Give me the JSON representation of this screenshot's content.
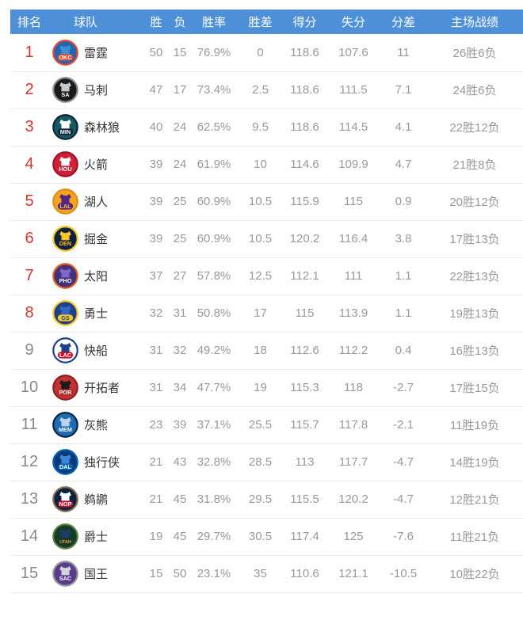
{
  "colors": {
    "header_bg": "#4e90d8",
    "header_text": "#ffffff",
    "rank_playoff": "#d5342e",
    "rank_normal": "#888888",
    "team_text": "#333333",
    "stat_text": "#999999",
    "divider": "#e9e9e9"
  },
  "table": {
    "columns": [
      "排名",
      "球队",
      "胜",
      "负",
      "胜率",
      "胜差",
      "得分",
      "失分",
      "分差",
      "主场战绩"
    ],
    "rows": [
      {
        "rank": "1",
        "playoff": true,
        "team": "雷霆",
        "logo": {
          "abbr": "OKC",
          "bg": "#2166b1",
          "ring": "#e8472b",
          "jersey": "#3f8fd2",
          "band": "#e8472b",
          "text": "#ffffff"
        },
        "wins": "50",
        "losses": "15",
        "pct": "76.9%",
        "gb": "0",
        "pf": "118.6",
        "pa": "107.6",
        "diff": "11",
        "home": "26胜6负"
      },
      {
        "rank": "2",
        "playoff": true,
        "team": "马刺",
        "logo": {
          "abbr": "SA",
          "bg": "#1b1b1b",
          "ring": "#8d9093",
          "jersey": "#c4c9cc",
          "band": "#1b1b1b",
          "text": "#ffffff"
        },
        "wins": "47",
        "losses": "17",
        "pct": "73.4%",
        "gb": "2.5",
        "pf": "118.6",
        "pa": "111.5",
        "diff": "7.1",
        "home": "24胜6负"
      },
      {
        "rank": "3",
        "playoff": true,
        "team": "森林狼",
        "logo": {
          "abbr": "MIN",
          "bg": "#165a60",
          "ring": "#0c2340",
          "jersey": "#ffffff",
          "band": "#0c2340",
          "text": "#ffffff"
        },
        "wins": "40",
        "losses": "24",
        "pct": "62.5%",
        "gb": "9.5",
        "pf": "118.6",
        "pa": "114.5",
        "diff": "4.1",
        "home": "22胜12负"
      },
      {
        "rank": "4",
        "playoff": true,
        "team": "火箭",
        "logo": {
          "abbr": "HOU",
          "bg": "#cf2038",
          "ring": "#9c1527",
          "jersey": "#ffffff",
          "band": "#cf2038",
          "text": "#ffffff"
        },
        "wins": "39",
        "losses": "24",
        "pct": "61.9%",
        "gb": "10",
        "pf": "114.6",
        "pa": "109.9",
        "diff": "4.7",
        "home": "21胜8负"
      },
      {
        "rank": "5",
        "playoff": true,
        "team": "湖人",
        "logo": {
          "abbr": "LAL",
          "bg": "#f5a41e",
          "ring": "#e08c12",
          "jersey": "#552583",
          "band": "#552583",
          "text": "#f8c04a"
        },
        "wins": "39",
        "losses": "25",
        "pct": "60.9%",
        "gb": "10.5",
        "pf": "115.9",
        "pa": "115",
        "diff": "0.9",
        "home": "20胜12负"
      },
      {
        "rank": "6",
        "playoff": true,
        "team": "掘金",
        "logo": {
          "abbr": "DEN",
          "bg": "#0e2240",
          "ring": "#fec524",
          "jersey": "#fec524",
          "band": "#0e2240",
          "text": "#fec524"
        },
        "wins": "39",
        "losses": "25",
        "pct": "60.9%",
        "gb": "10.5",
        "pf": "120.2",
        "pa": "116.4",
        "diff": "3.8",
        "home": "17胜13负"
      },
      {
        "rank": "7",
        "playoff": true,
        "team": "太阳",
        "logo": {
          "abbr": "PHO",
          "bg": "#43307c",
          "ring": "#e56020",
          "jersey": "#8266c9",
          "band": "#43307c",
          "text": "#ffffff"
        },
        "wins": "37",
        "losses": "27",
        "pct": "57.8%",
        "gb": "12.5",
        "pf": "112.1",
        "pa": "111",
        "diff": "1.1",
        "home": "22胜13负"
      },
      {
        "rank": "8",
        "playoff": true,
        "team": "勇士",
        "logo": {
          "abbr": "GS",
          "bg": "#1d428a",
          "ring": "#ffc72c",
          "jersey": "#3567c2",
          "band": "#ffc72c",
          "text": "#1d428a"
        },
        "wins": "32",
        "losses": "31",
        "pct": "50.8%",
        "gb": "17",
        "pf": "115",
        "pa": "113.9",
        "diff": "1.1",
        "home": "19胜13负"
      },
      {
        "rank": "9",
        "playoff": false,
        "team": "快船",
        "logo": {
          "abbr": "LAC",
          "bg": "#ffffff",
          "ring": "#1d428a",
          "jersey": "#1d428a",
          "band": "#c8102e",
          "text": "#ffffff"
        },
        "wins": "31",
        "losses": "32",
        "pct": "49.2%",
        "gb": "18",
        "pf": "112.6",
        "pa": "112.2",
        "diff": "0.4",
        "home": "16胜13负"
      },
      {
        "rank": "10",
        "playoff": false,
        "team": "开拓者",
        "logo": {
          "abbr": "POR",
          "bg": "#c13432",
          "ring": "#8f1f1e",
          "jersey": "#1a1a1a",
          "band": "#b02a2a",
          "text": "#ffffff"
        },
        "wins": "31",
        "losses": "34",
        "pct": "47.7%",
        "gb": "19",
        "pf": "115.3",
        "pa": "118",
        "diff": "-2.7",
        "home": "17胜15负"
      },
      {
        "rank": "11",
        "playoff": false,
        "team": "灰熊",
        "logo": {
          "abbr": "MEM",
          "bg": "#1d6cb5",
          "ring": "#0c2340",
          "jersey": "#bcd3ea",
          "band": "#1d6cb5",
          "text": "#ffffff"
        },
        "wins": "23",
        "losses": "39",
        "pct": "37.1%",
        "gb": "25.5",
        "pf": "115.7",
        "pa": "117.8",
        "diff": "-2.1",
        "home": "11胜19负"
      },
      {
        "rank": "12",
        "playoff": false,
        "team": "独行侠",
        "logo": {
          "abbr": "DAL",
          "bg": "#0b3978",
          "ring": "#0064b1",
          "jersey": "#3a87d8",
          "band": "#0064b1",
          "text": "#ffffff"
        },
        "wins": "21",
        "losses": "43",
        "pct": "32.8%",
        "gb": "28.5",
        "pf": "113",
        "pa": "117.7",
        "diff": "-4.7",
        "home": "14胜19负"
      },
      {
        "rank": "13",
        "playoff": false,
        "team": "鹈鹕",
        "logo": {
          "abbr": "NOP",
          "bg": "#0c2340",
          "ring": "#8a6e4b",
          "jersey": "#ffffff",
          "band": "#c8102e",
          "text": "#ffffff"
        },
        "wins": "21",
        "losses": "45",
        "pct": "31.8%",
        "gb": "29.5",
        "pf": "115.5",
        "pa": "120.2",
        "diff": "-4.7",
        "home": "12胜21负"
      },
      {
        "rank": "14",
        "playoff": false,
        "team": "爵士",
        "logo": {
          "abbr": "UTAH",
          "bg": "#123b2a",
          "ring": "#5a7d3c",
          "jersey": "#1d3c66",
          "band": "#123b2a",
          "text": "#f9a01b"
        },
        "wins": "19",
        "losses": "45",
        "pct": "29.7%",
        "gb": "30.5",
        "pf": "117.4",
        "pa": "125",
        "diff": "-7.6",
        "home": "11胜21负"
      },
      {
        "rank": "15",
        "playoff": false,
        "team": "国王",
        "logo": {
          "abbr": "SAC",
          "bg": "#5b3a8e",
          "ring": "#8f9799",
          "jersey": "#cfd4d8",
          "band": "#5b3a8e",
          "text": "#ffffff"
        },
        "wins": "15",
        "losses": "50",
        "pct": "23.1%",
        "gb": "35",
        "pf": "110.6",
        "pa": "121.1",
        "diff": "-10.5",
        "home": "10胜22负"
      }
    ]
  }
}
